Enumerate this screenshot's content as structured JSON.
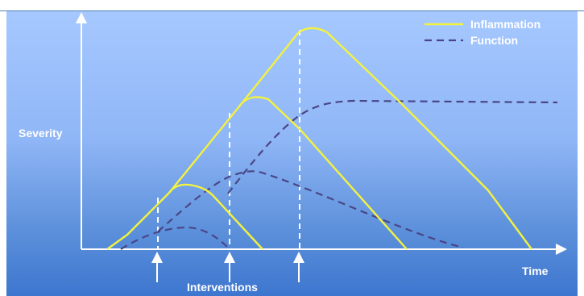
{
  "axes": {
    "y_label": "Severity",
    "x_label": "Time",
    "bottom_label": "Interventions"
  },
  "legend": {
    "items": [
      {
        "name": "Inflammation",
        "style": "solid",
        "color": "#f2f240"
      },
      {
        "name": "Function",
        "style": "dashed",
        "color": "#4a4686"
      }
    ]
  },
  "colors": {
    "axis": "#ffffff",
    "inflammation": "#f2f240",
    "function": "#4a4686",
    "marker": "#ffffff"
  }
}
